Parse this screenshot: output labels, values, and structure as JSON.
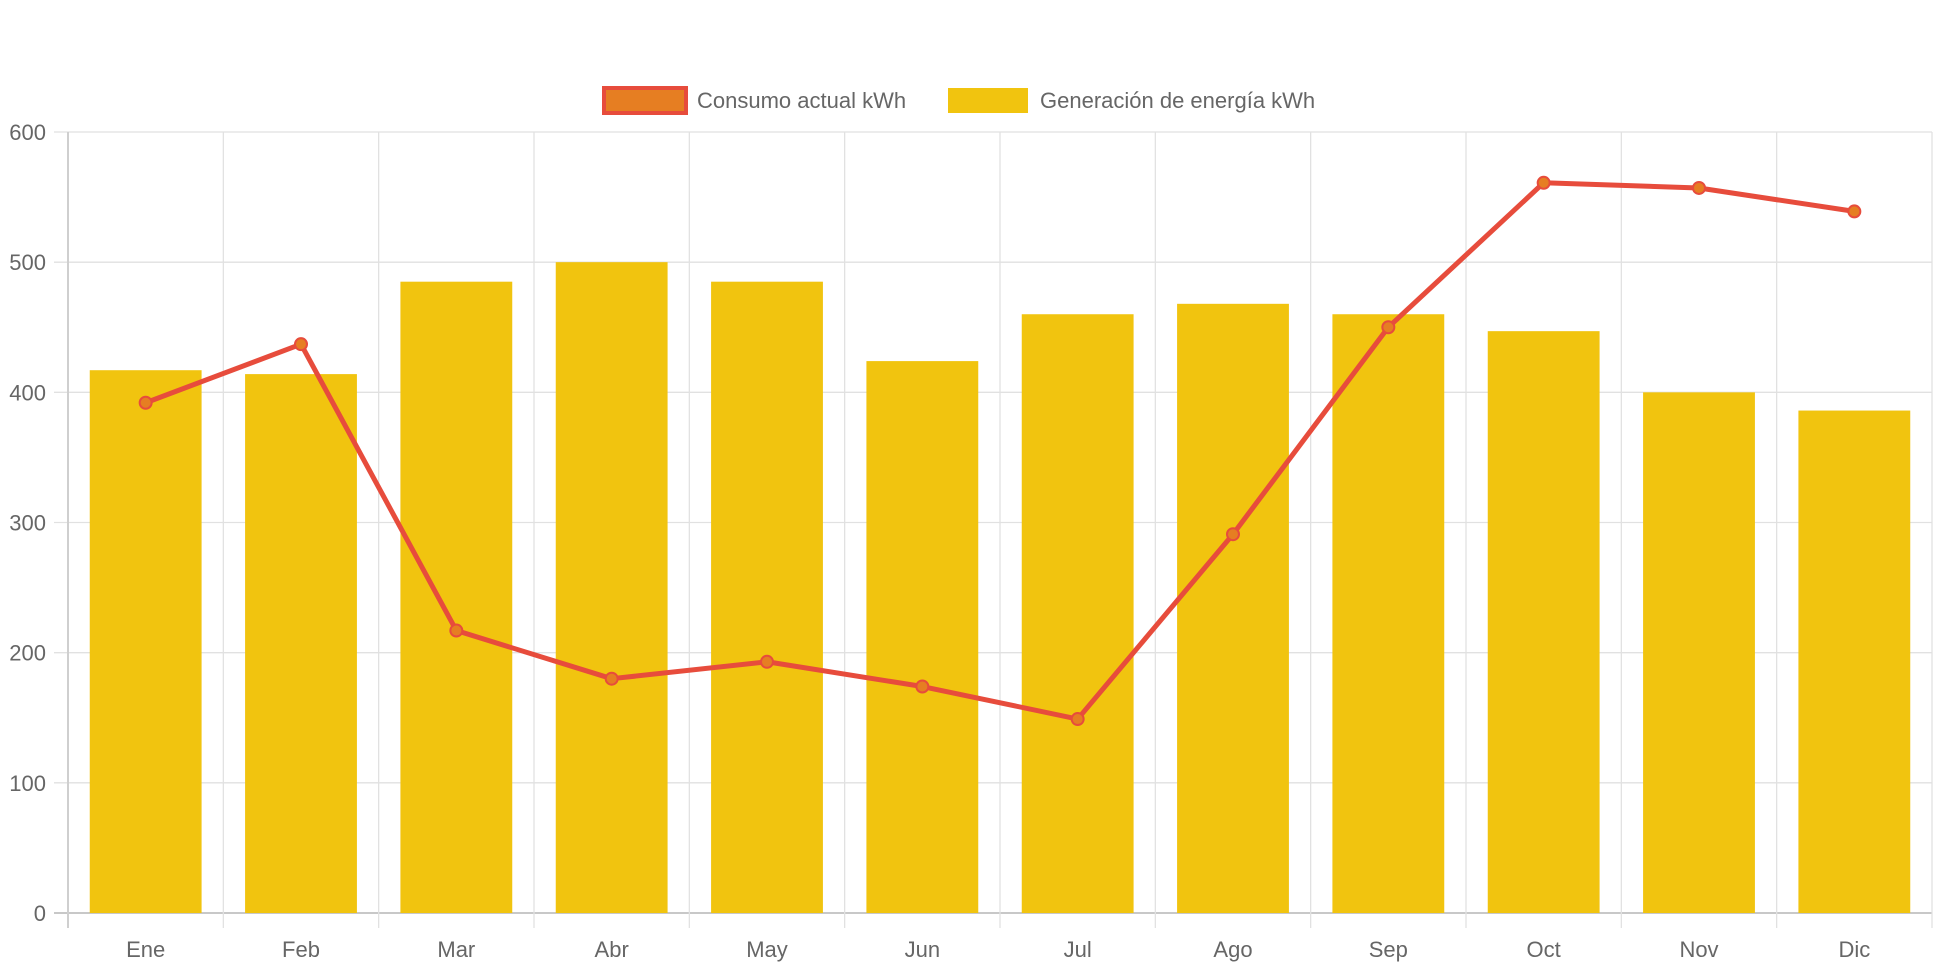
{
  "chart_data": {
    "type": "bar",
    "title": "",
    "xlabel": "",
    "ylabel": "",
    "categories": [
      "Ene",
      "Feb",
      "Mar",
      "Abr",
      "May",
      "Jun",
      "Jul",
      "Ago",
      "Sep",
      "Oct",
      "Nov",
      "Dic"
    ],
    "ylim": [
      0,
      600
    ],
    "yticks": [
      0,
      100,
      200,
      300,
      400,
      500,
      600
    ],
    "grid": true,
    "legend_position": "top-center",
    "series": [
      {
        "name": "Consumo actual kWh",
        "type": "line",
        "color": "#e74c3c",
        "point_fill": "#e67e22",
        "values": [
          392,
          437,
          217,
          180,
          193,
          174,
          149,
          291,
          450,
          561,
          557,
          539
        ]
      },
      {
        "name": "Generación de energía kWh",
        "type": "bar",
        "color": "#f1c40f",
        "values": [
          417,
          414,
          485,
          500,
          485,
          424,
          460,
          468,
          460,
          447,
          400,
          386
        ]
      }
    ]
  }
}
